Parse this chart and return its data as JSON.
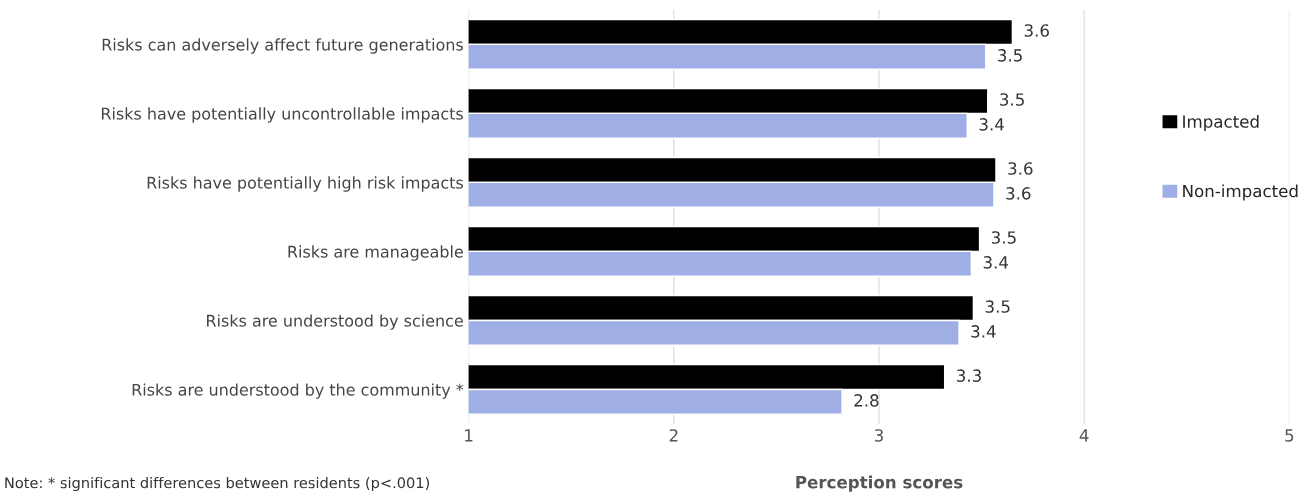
{
  "chart_data": {
    "type": "bar",
    "orientation": "horizontal",
    "categories": [
      "Risks can adversely affect future generations",
      "Risks have potentially uncontrollable impacts",
      "Risks have potentially high risk impacts",
      "Risks are manageable",
      "Risks are understood by science",
      "Risks are understood by the community *"
    ],
    "series": [
      {
        "name": "Impacted",
        "color": "#000000",
        "values": [
          3.65,
          3.53,
          3.57,
          3.49,
          3.46,
          3.32
        ],
        "value_labels": [
          "3.6",
          "3.5",
          "3.6",
          "3.5",
          "3.5",
          "3.3"
        ]
      },
      {
        "name": "Non-impacted",
        "color": "#9faee5",
        "values": [
          3.52,
          3.43,
          3.56,
          3.45,
          3.39,
          2.82
        ],
        "value_labels": [
          "3.5",
          "3.4",
          "3.6",
          "3.4",
          "3.4",
          "2.8"
        ]
      }
    ],
    "xlabel": "Perception scores",
    "xlim": [
      1,
      5
    ],
    "xticks": [
      1,
      2,
      3,
      4,
      5
    ],
    "grid": "x",
    "legend": "right",
    "annotations": [
      "Note: * significant differences between residents (p<.001)"
    ]
  }
}
